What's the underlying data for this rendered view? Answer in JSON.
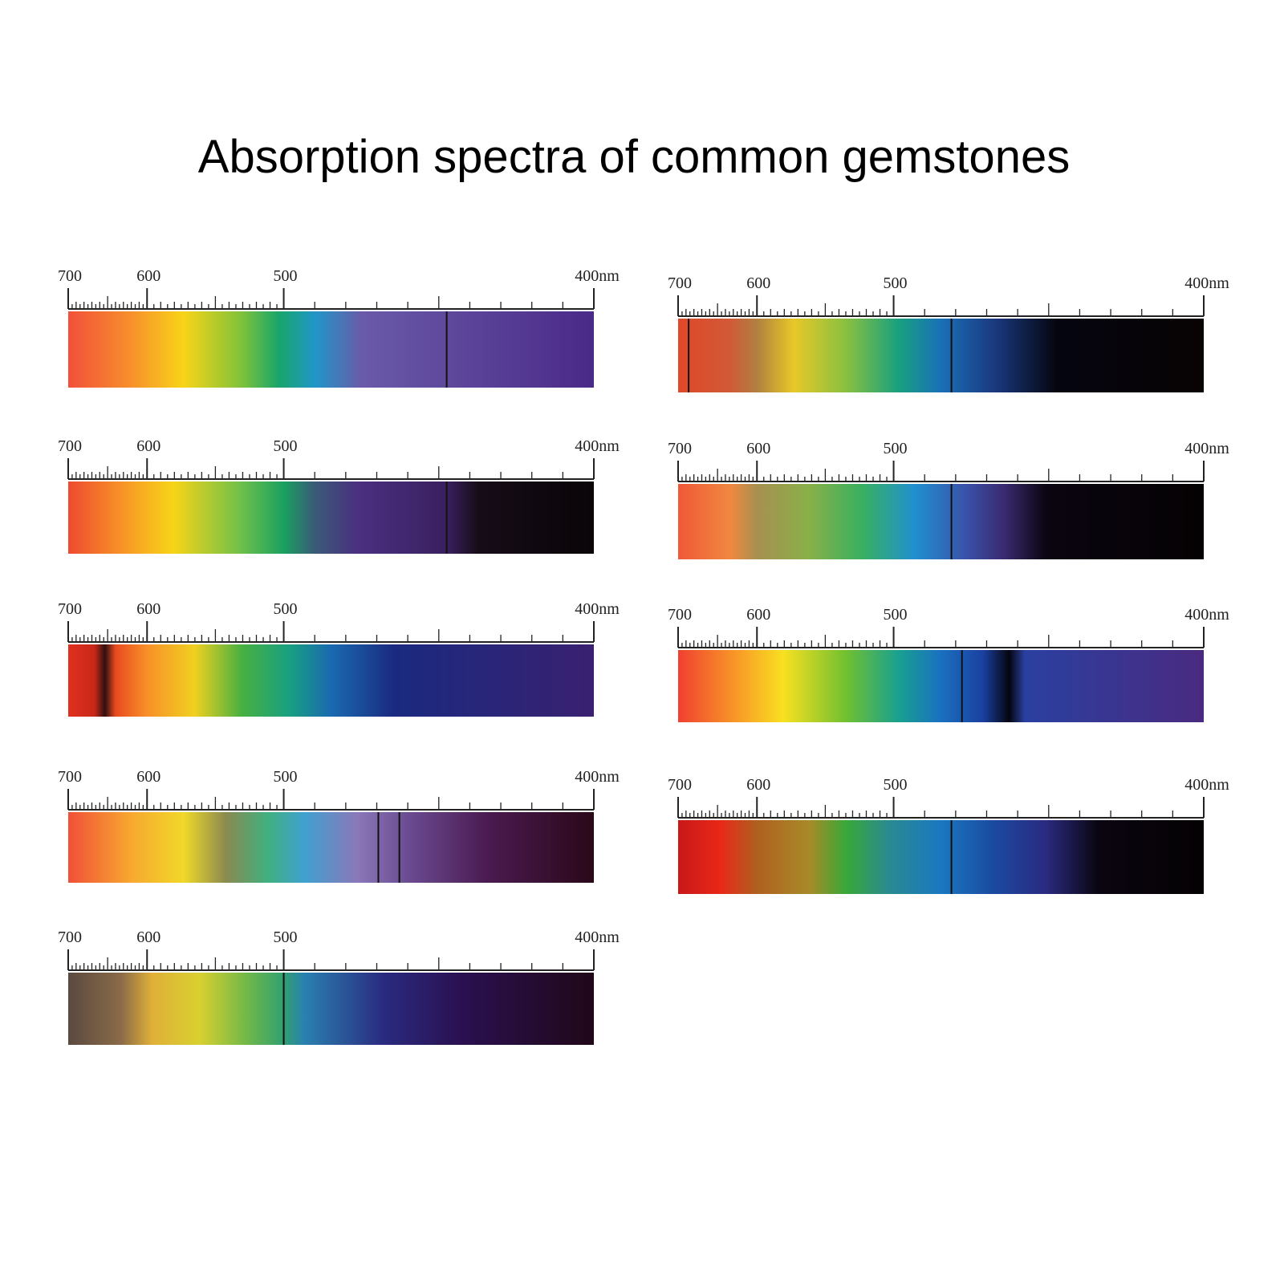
{
  "title": "Absorption spectra of common gemstones",
  "panels": [
    {
      "scale_labels": [
        "700",
        "600",
        "500",
        "400nm"
      ]
    },
    {
      "scale_labels": [
        "700",
        "600",
        "500",
        "400nm"
      ]
    },
    {
      "scale_labels": [
        "700",
        "600",
        "500",
        "400nm"
      ]
    },
    {
      "scale_labels": [
        "700",
        "600",
        "500",
        "400nm"
      ]
    },
    {
      "scale_labels": [
        "700",
        "600",
        "500",
        "400nm"
      ]
    },
    {
      "scale_labels": [
        "700",
        "600",
        "500",
        "400nm"
      ]
    },
    {
      "scale_labels": [
        "700",
        "600",
        "500",
        "400nm"
      ]
    },
    {
      "scale_labels": [
        "700",
        "600",
        "500",
        "400nm"
      ]
    },
    {
      "scale_labels": [
        "700",
        "600",
        "500",
        "400nm"
      ]
    }
  ]
}
